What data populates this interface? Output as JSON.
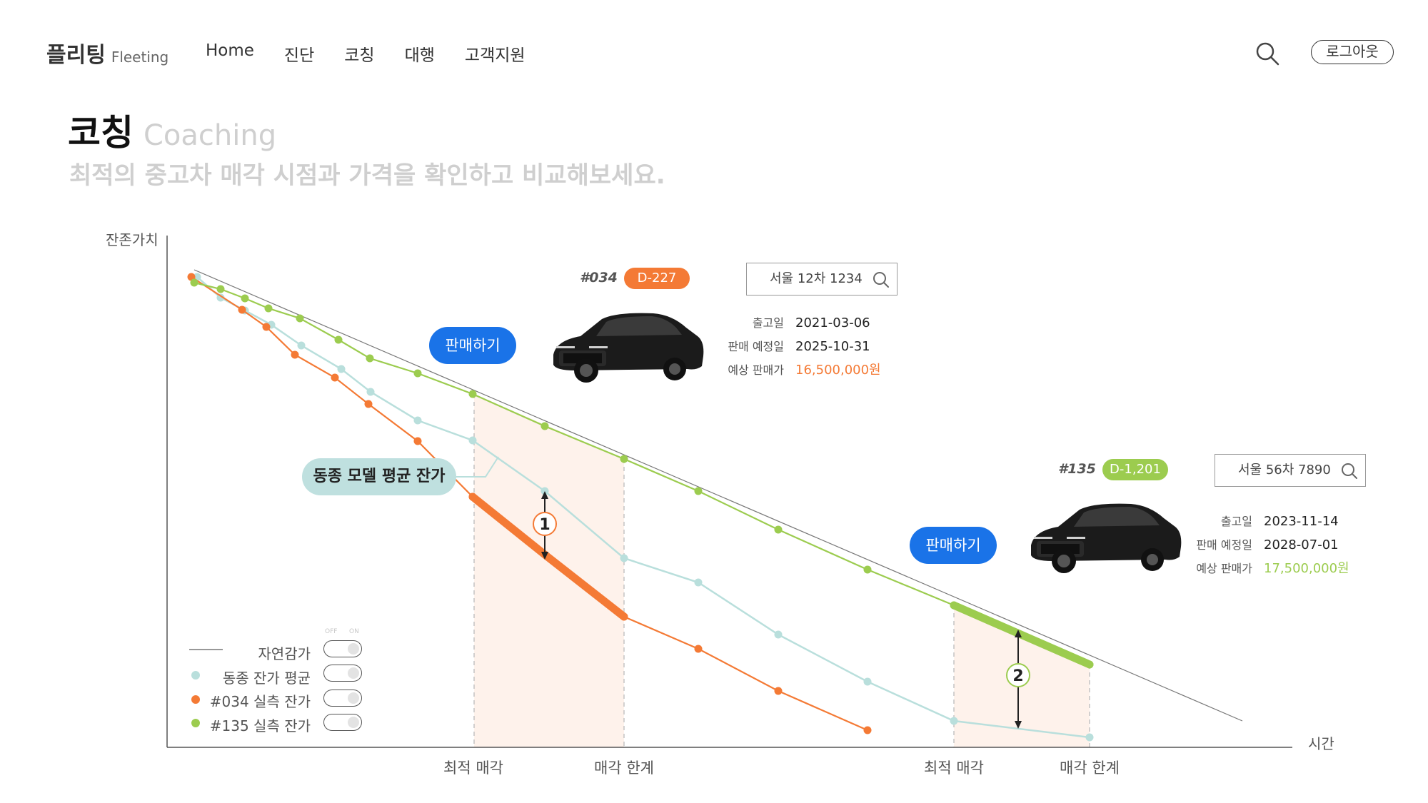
{
  "header": {
    "logo_ko": "플리팅",
    "logo_en": "Fleeting",
    "nav": [
      "Home",
      "진단",
      "코칭",
      "대행",
      "고객지원"
    ],
    "logout": "로그아웃"
  },
  "page": {
    "title_ko": "코칭",
    "title_en": "Coaching",
    "subtitle": "최적의 중고차 매각 시점과 가격을 확인하고 비교해보세요."
  },
  "chart_labels": {
    "y_axis": "잔존가치",
    "x_axis": "시간",
    "optimal_sale": "최적 매각",
    "sale_limit": "매각 한계",
    "avg_callout": "동종 모델 평균 잔가",
    "marker_1": "1",
    "marker_2": "2"
  },
  "legend": {
    "off": "OFF",
    "on": "ON",
    "items": [
      {
        "label": "자연감가"
      },
      {
        "label": "동종 잔가 평균"
      },
      {
        "label": "#034 실측 잔가"
      },
      {
        "label": "#135 실측 잔가"
      }
    ]
  },
  "cars": [
    {
      "id": "#034",
      "dday": "D-227",
      "plate": "서울 12차 1234",
      "sell_label": "판매하기",
      "release_key": "출고일",
      "release": "2021-03-06",
      "planned_key": "판매 예정일",
      "planned": "2025-10-31",
      "price_key": "예상 판매가",
      "price": "16,500,000원"
    },
    {
      "id": "#135",
      "dday": "D-1,201",
      "plate": "서울 56차 7890",
      "sell_label": "판매하기",
      "release_key": "출고일",
      "release": "2023-11-14",
      "planned_key": "판매 예정일",
      "planned": "2028-07-01",
      "price_key": "예상 판매가",
      "price": "17,500,000원"
    }
  ],
  "colors": {
    "orange": "#f47a35",
    "green": "#9ccc4f",
    "teal": "#b9dfdc",
    "blue": "#1a73e8",
    "shade": "#fdeee4"
  },
  "chart_data": {
    "type": "line",
    "xlabel": "시간",
    "ylabel": "잔존가치",
    "series": [
      {
        "name": "자연감가",
        "style": "thin-line"
      },
      {
        "name": "동종 잔가 평균"
      },
      {
        "name": "#034 실측 잔가"
      },
      {
        "name": "#135 실측 잔가"
      }
    ],
    "annotations": [
      "최적 매각",
      "매각 한계",
      "최적 매각",
      "매각 한계"
    ]
  }
}
